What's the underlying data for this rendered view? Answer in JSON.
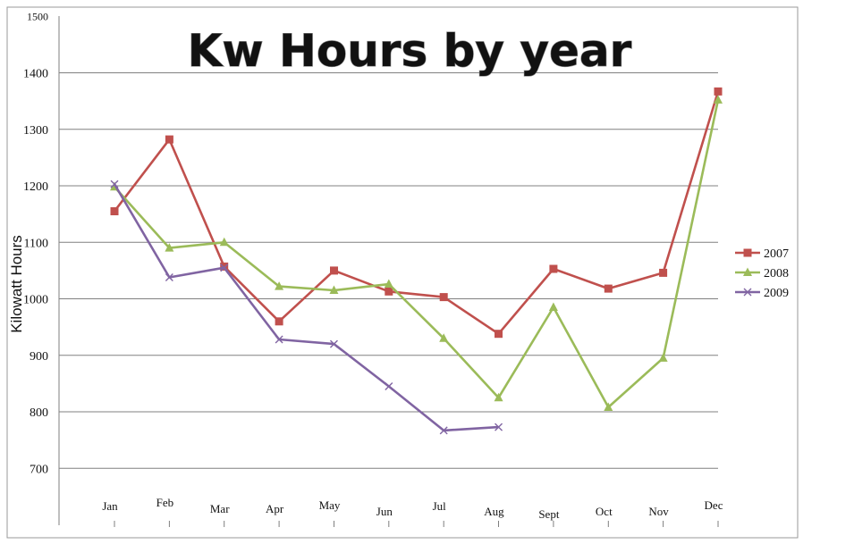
{
  "chart_data": {
    "type": "line",
    "title": "Kw Hours by year",
    "xlabel": "",
    "ylabel": "Kilowatt Hours",
    "categories": [
      "Jan",
      "Feb",
      "Mar",
      "Apr",
      "May",
      "Jun",
      "Jul",
      "Aug",
      "Sept",
      "Oct",
      "Nov",
      "Dec"
    ],
    "ylim": [
      650,
      1500
    ],
    "yticks": [
      "1500",
      "1400",
      "1300",
      "1200",
      "1100",
      "1000",
      "900",
      "800",
      "700"
    ],
    "grid": "horizontal",
    "legend_position": "right",
    "series": [
      {
        "name": "2007",
        "color": "#c0504d",
        "marker": "square",
        "values": [
          1155,
          1282,
          1057,
          960,
          1050,
          1013,
          1003,
          938,
          1053,
          1018,
          1046,
          1367
        ]
      },
      {
        "name": "2008",
        "color": "#9bbb59",
        "marker": "triangle",
        "values": [
          1198,
          1090,
          1100,
          1022,
          1015,
          1026,
          930,
          825,
          985,
          808,
          895,
          1352
        ]
      },
      {
        "name": "2009",
        "color": "#8064a2",
        "marker": "x",
        "values": [
          1203,
          1038,
          1055,
          928,
          920,
          845,
          767,
          773,
          null,
          null,
          null,
          null
        ]
      }
    ]
  }
}
